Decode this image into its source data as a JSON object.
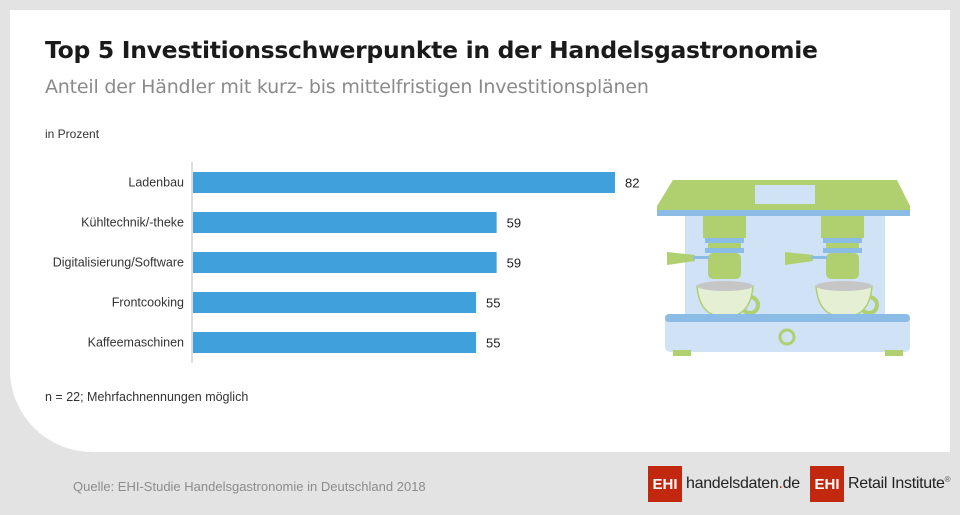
{
  "header": {
    "title": "Top 5 Investitionsschwerpunkte in der Handelsgastronomie",
    "subtitle": "Anteil der Händler mit kurz- bis mittelfristigen Investitionsplänen",
    "unit_label": "in Prozent"
  },
  "footer": {
    "note": "n = 22; Mehrfachnennungen möglich",
    "source": "Quelle: EHI-Studie Handelsgastronomie in Deutschland 2018",
    "logo1": {
      "box": "EHI",
      "text_main": "handelsdaten",
      "text_dot": ".",
      "text_tld": "de"
    },
    "logo2": {
      "box": "EHI",
      "text": "Retail Institute",
      "mark": "®"
    }
  },
  "colors": {
    "bar": "#3fa0dc",
    "brand_red": "#c1280e",
    "machine_green": "#b0cf6e",
    "machine_light_blue": "#cfe2f6",
    "machine_blue": "#8bbce6",
    "cup_fill": "#e4efd4",
    "coffee_grey": "#c6c6c6"
  },
  "illustration": {
    "name": "espresso-machine-icon"
  },
  "chart_data": {
    "type": "bar",
    "orientation": "horizontal",
    "title": "Top 5 Investitionsschwerpunkte in der Handelsgastronomie",
    "subtitle": "Anteil der Händler mit kurz- bis mittelfristigen Investitionsplänen",
    "xlabel": "in Prozent",
    "ylabel": "",
    "categories": [
      "Ladenbau",
      "Kühltechnik/-theke",
      "Digitalisierung/Software",
      "Frontcooking",
      "Kaffeemaschinen"
    ],
    "values": [
      82,
      59,
      59,
      55,
      55
    ],
    "data_labels": [
      "82",
      "59",
      "59",
      "55",
      "55"
    ],
    "xlim": [
      0,
      82
    ],
    "grid": false,
    "legend": "none"
  }
}
